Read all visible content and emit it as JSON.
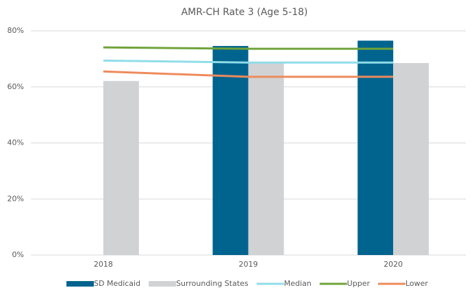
{
  "chart_data": {
    "type": "bar",
    "title": "AMR-CH Rate 3 (Age 5-18)",
    "categories": [
      "2018",
      "2019",
      "2020"
    ],
    "series": [
      {
        "name": "SD Medicaid",
        "type": "bar",
        "color": "#00648f",
        "values": [
          null,
          74.6,
          76.5
        ]
      },
      {
        "name": "Surrounding States",
        "type": "bar",
        "color": "#d0d2d3",
        "values": [
          62.1,
          68.5,
          68.5
        ]
      },
      {
        "name": "Median",
        "type": "line",
        "color": "#8fdde8",
        "values": [
          69.4,
          68.7,
          68.7
        ]
      },
      {
        "name": "Upper",
        "type": "line",
        "color": "#6fa33a",
        "values": [
          74.1,
          73.6,
          73.6
        ]
      },
      {
        "name": "Lower",
        "type": "line",
        "color": "#ee8a5b",
        "values": [
          65.5,
          63.6,
          63.6
        ]
      }
    ],
    "ylim": [
      0,
      80
    ],
    "yticks": [
      {
        "value": 0,
        "label": "0%"
      },
      {
        "value": 20,
        "label": "20%"
      },
      {
        "value": 40,
        "label": "40%"
      },
      {
        "value": 60,
        "label": "60%"
      },
      {
        "value": 80,
        "label": "80%"
      }
    ],
    "grid": true,
    "legend": "bottom"
  }
}
